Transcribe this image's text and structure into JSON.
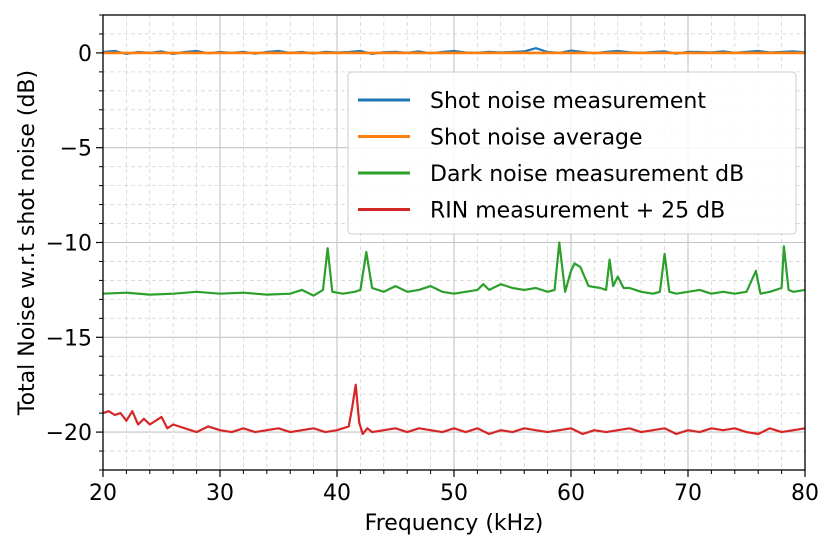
{
  "chart_data": {
    "type": "line",
    "title": "",
    "xlabel": "Frequency (kHz)",
    "ylabel": "Total Noise w.r.t shot noise (dB)",
    "xlim": [
      20,
      80
    ],
    "ylim": [
      -22,
      2
    ],
    "xticks": [
      "20",
      "30",
      "40",
      "50",
      "60",
      "70",
      "80"
    ],
    "xtick_values": [
      20,
      30,
      40,
      50,
      60,
      70,
      80
    ],
    "yticks": [
      "0",
      "−5",
      "−10",
      "−15",
      "−20"
    ],
    "ytick_values": [
      0,
      -5,
      -10,
      -15,
      -20
    ],
    "grid": true,
    "minor_grid": true,
    "legend_position": "upper-right",
    "series": [
      {
        "name": "Shot noise measurement",
        "color": "#1f77b4",
        "x": [
          20,
          21,
          22,
          23,
          24,
          25,
          26,
          27,
          28,
          29,
          30,
          31,
          32,
          33,
          34,
          35,
          36,
          37,
          38,
          39,
          40,
          41,
          42,
          43,
          44,
          45,
          46,
          47,
          48,
          49,
          50,
          51,
          52,
          53,
          54,
          55,
          56,
          57,
          58,
          59,
          60,
          61,
          62,
          63,
          64,
          65,
          66,
          67,
          68,
          69,
          70,
          71,
          72,
          73,
          74,
          75,
          76,
          77,
          78,
          79,
          80
        ],
        "y": [
          0.05,
          0.1,
          -0.05,
          0.05,
          0.0,
          0.08,
          -0.05,
          0.05,
          0.1,
          -0.02,
          0.05,
          0.0,
          0.06,
          -0.04,
          0.05,
          0.1,
          0.0,
          0.05,
          -0.03,
          0.06,
          0.02,
          0.05,
          0.1,
          -0.05,
          0.04,
          0.06,
          0.0,
          0.08,
          -0.02,
          0.05,
          0.1,
          0.02,
          0.0,
          0.06,
          0.02,
          0.05,
          0.08,
          0.25,
          0.05,
          0.0,
          0.12,
          0.05,
          -0.02,
          0.06,
          0.1,
          0.04,
          0.0,
          0.05,
          0.08,
          -0.04,
          0.06,
          0.05,
          0.02,
          0.08,
          0.0,
          0.06,
          0.1,
          0.02,
          0.05,
          0.08,
          0.03
        ]
      },
      {
        "name": "Shot noise average",
        "color": "#ff7f0e",
        "x": [
          20,
          80
        ],
        "y": [
          0.0,
          0.0
        ]
      },
      {
        "name": "Dark noise measurement dB",
        "color": "#2ca02c",
        "x": [
          20,
          22,
          24,
          26,
          28,
          30,
          32,
          34,
          36,
          37,
          38,
          38.8,
          39.2,
          39.6,
          40.5,
          41.5,
          42.0,
          42.5,
          43.0,
          44,
          45,
          46,
          47,
          48,
          49,
          50,
          51,
          52,
          52.5,
          53,
          54,
          55,
          56,
          57,
          58,
          58.6,
          59.0,
          59.5,
          60.0,
          60.3,
          60.8,
          61.5,
          62.5,
          63.0,
          63.3,
          63.6,
          64.0,
          64.5,
          65,
          66,
          67,
          67.6,
          68.0,
          68.4,
          69,
          70,
          71,
          72,
          73,
          74,
          75,
          75.8,
          76.2,
          77,
          78,
          78.2,
          78.6,
          79,
          80
        ],
        "y": [
          -12.7,
          -12.65,
          -12.75,
          -12.7,
          -12.6,
          -12.7,
          -12.65,
          -12.75,
          -12.7,
          -12.5,
          -12.8,
          -12.5,
          -10.3,
          -12.6,
          -12.7,
          -12.6,
          -12.5,
          -10.5,
          -12.4,
          -12.6,
          -12.3,
          -12.6,
          -12.5,
          -12.3,
          -12.6,
          -12.7,
          -12.6,
          -12.5,
          -12.2,
          -12.5,
          -12.2,
          -12.4,
          -12.5,
          -12.4,
          -12.6,
          -12.5,
          -10.0,
          -12.6,
          -11.5,
          -11.1,
          -11.3,
          -12.3,
          -12.4,
          -12.5,
          -10.9,
          -12.3,
          -11.8,
          -12.4,
          -12.4,
          -12.6,
          -12.7,
          -12.6,
          -10.6,
          -12.6,
          -12.7,
          -12.6,
          -12.5,
          -12.7,
          -12.6,
          -12.7,
          -12.6,
          -11.5,
          -12.7,
          -12.6,
          -12.4,
          -10.2,
          -12.5,
          -12.6,
          -12.5
        ]
      },
      {
        "name": "RIN measurement + 25 dB",
        "color": "#d62728",
        "x": [
          20,
          20.5,
          21,
          21.5,
          22,
          22.5,
          23,
          23.5,
          24,
          24.5,
          25,
          25.5,
          26,
          27,
          28,
          29,
          30,
          31,
          32,
          33,
          34,
          35,
          36,
          37,
          38,
          39,
          40,
          40.5,
          41,
          41.3,
          41.6,
          41.9,
          42.2,
          42.6,
          43,
          44,
          45,
          46,
          47,
          48,
          49,
          50,
          51,
          52,
          53,
          54,
          55,
          56,
          57,
          58,
          59,
          60,
          61,
          62,
          63,
          64,
          65,
          66,
          67,
          68,
          69,
          70,
          71,
          72,
          73,
          74,
          75,
          76,
          77,
          78,
          79,
          80
        ],
        "y": [
          -19.0,
          -18.9,
          -19.1,
          -19.0,
          -19.4,
          -18.9,
          -19.6,
          -19.3,
          -19.6,
          -19.4,
          -19.2,
          -19.8,
          -19.6,
          -19.8,
          -20.0,
          -19.7,
          -19.9,
          -20.0,
          -19.8,
          -20.0,
          -19.9,
          -19.8,
          -20.0,
          -19.9,
          -19.8,
          -20.0,
          -19.9,
          -19.8,
          -19.7,
          -18.7,
          -17.5,
          -19.5,
          -20.1,
          -19.8,
          -20.0,
          -19.9,
          -19.8,
          -20.0,
          -19.8,
          -19.9,
          -20.0,
          -19.8,
          -20.0,
          -19.8,
          -20.1,
          -19.9,
          -20.0,
          -19.8,
          -19.9,
          -20.0,
          -19.9,
          -19.8,
          -20.1,
          -19.9,
          -20.0,
          -19.9,
          -19.8,
          -20.0,
          -19.9,
          -19.8,
          -20.1,
          -19.9,
          -20.0,
          -19.8,
          -19.9,
          -19.8,
          -20.0,
          -20.1,
          -19.8,
          -20.0,
          -19.9,
          -19.8
        ]
      }
    ]
  }
}
